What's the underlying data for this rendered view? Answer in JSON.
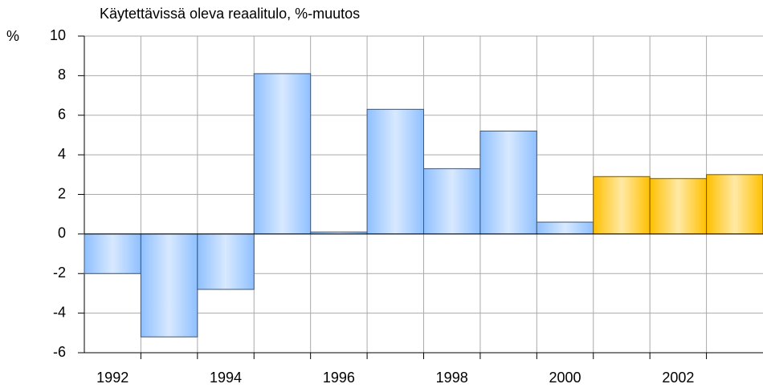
{
  "chart_data": {
    "type": "bar",
    "title": "Käytettävissä oleva reaalitulo, %-muutos",
    "y_label": "%",
    "categories": [
      "1992",
      null,
      "1994",
      null,
      "1996",
      null,
      "1998",
      null,
      "2000",
      null,
      "2002",
      null
    ],
    "values": [
      -2.0,
      -5.2,
      -2.8,
      8.1,
      0.1,
      6.3,
      3.3,
      5.2,
      0.6,
      2.9,
      2.8,
      3.0
    ],
    "colors": [
      "#8fc0ff",
      "#8fc0ff",
      "#8fc0ff",
      "#8fc0ff",
      "#8fc0ff",
      "#8fc0ff",
      "#8fc0ff",
      "#8fc0ff",
      "#8fc0ff",
      "#ffc000",
      "#ffc000",
      "#ffc000"
    ],
    "ylim": [
      -6,
      10
    ],
    "yticks": [
      -6,
      -4,
      -2,
      0,
      2,
      4,
      6,
      8,
      10
    ],
    "grid": true
  }
}
